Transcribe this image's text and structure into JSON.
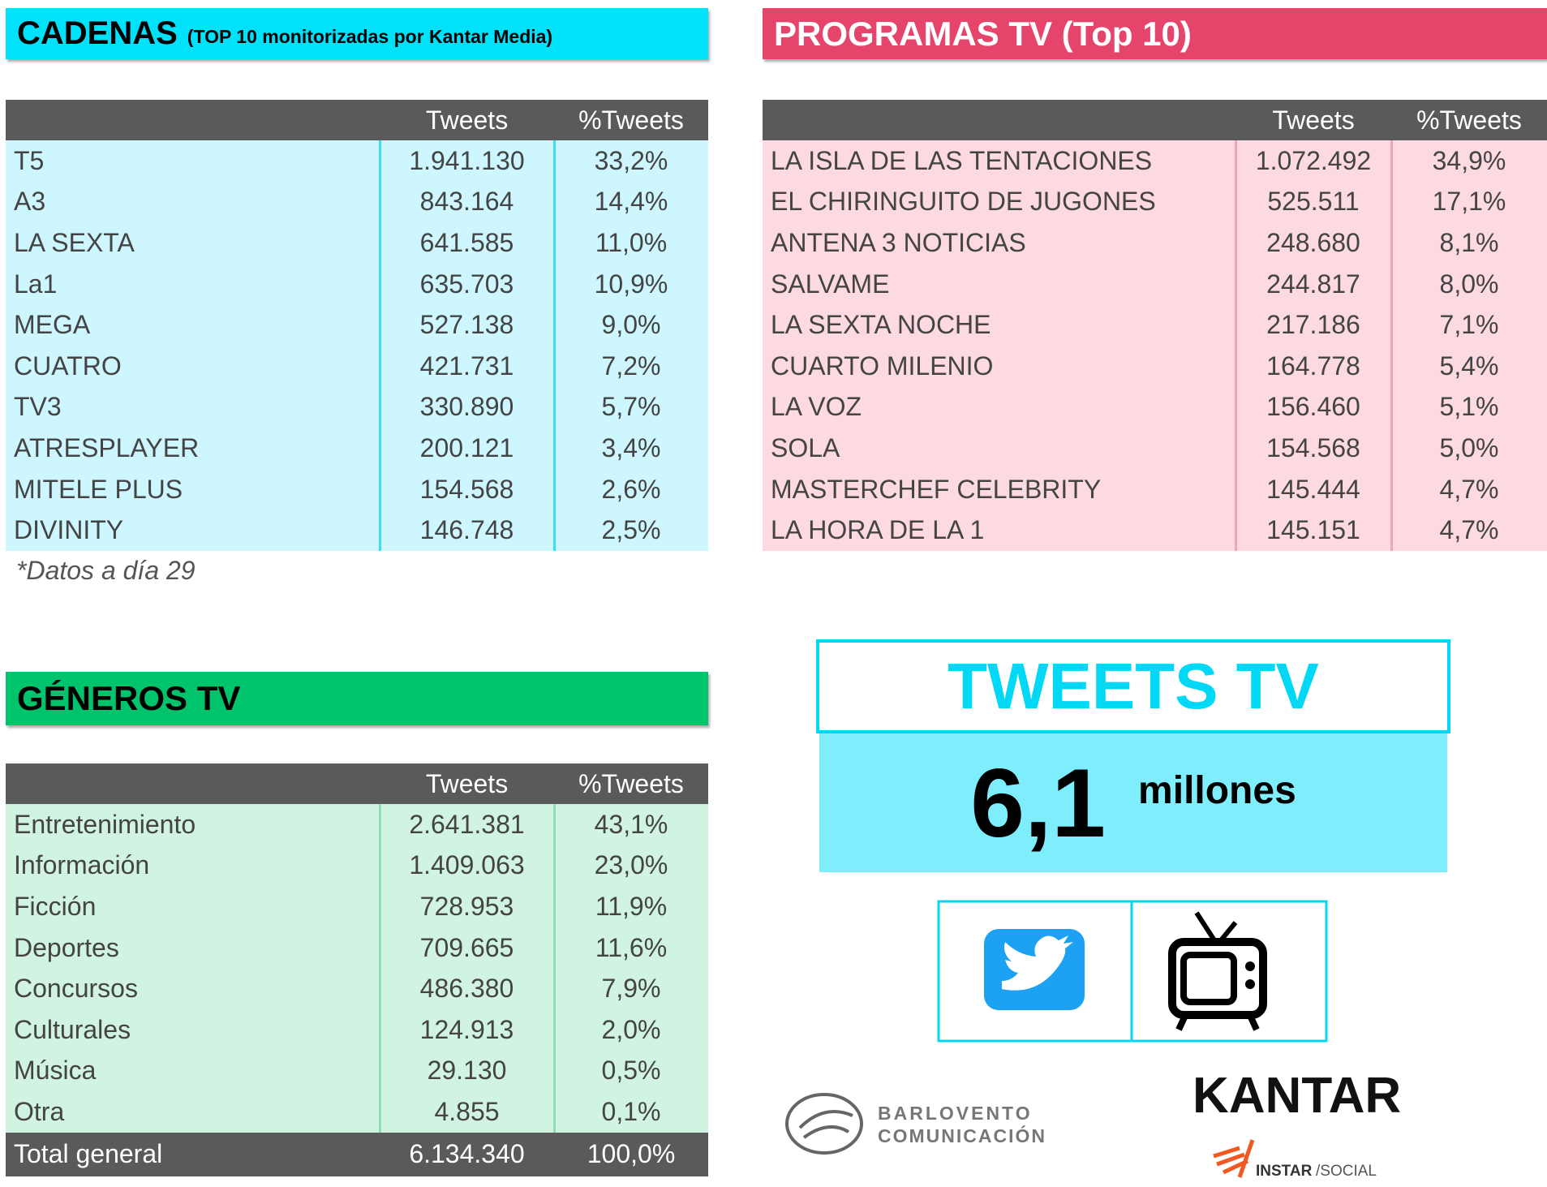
{
  "cadenas": {
    "title": "CADENAS",
    "subtitle": "(TOP 10 monitorizadas por Kantar Media)",
    "columns": [
      "Tweets",
      "%Tweets"
    ],
    "rows": [
      [
        "T5",
        "1.941.130",
        "33,2%"
      ],
      [
        "A3",
        "843.164",
        "14,4%"
      ],
      [
        "LA SEXTA",
        "641.585",
        "11,0%"
      ],
      [
        "La1",
        "635.703",
        "10,9%"
      ],
      [
        "MEGA",
        "527.138",
        "9,0%"
      ],
      [
        "CUATRO",
        "421.731",
        "7,2%"
      ],
      [
        "TV3",
        "330.890",
        "5,7%"
      ],
      [
        "ATRESPLAYER",
        "200.121",
        "3,4%"
      ],
      [
        "MITELE PLUS",
        "154.568",
        "2,6%"
      ],
      [
        "DIVINITY",
        "146.748",
        "2,5%"
      ]
    ],
    "note": "*Datos a día 29"
  },
  "programas": {
    "title": "PROGRAMAS TV (Top 10)",
    "columns": [
      "Tweets",
      "%Tweets"
    ],
    "rows": [
      [
        "LA ISLA DE LAS TENTACIONES",
        "1.072.492",
        "34,9%"
      ],
      [
        "EL CHIRINGUITO DE JUGONES",
        "525.511",
        "17,1%"
      ],
      [
        "ANTENA 3 NOTICIAS",
        "248.680",
        "8,1%"
      ],
      [
        "SALVAME",
        "244.817",
        "8,0%"
      ],
      [
        "LA SEXTA NOCHE",
        "217.186",
        "7,1%"
      ],
      [
        "CUARTO MILENIO",
        "164.778",
        "5,4%"
      ],
      [
        "LA VOZ",
        "156.460",
        "5,1%"
      ],
      [
        "SOLA",
        "154.568",
        "5,0%"
      ],
      [
        "MASTERCHEF CELEBRITY",
        "145.444",
        "4,7%"
      ],
      [
        "LA HORA DE LA 1",
        "145.151",
        "4,7%"
      ]
    ]
  },
  "generos": {
    "title": "GÉNEROS TV",
    "columns": [
      "Tweets",
      "%Tweets"
    ],
    "rows": [
      [
        "Entretenimiento",
        "2.641.381",
        "43,1%"
      ],
      [
        "Información",
        "1.409.063",
        "23,0%"
      ],
      [
        "Ficción",
        "728.953",
        "11,9%"
      ],
      [
        "Deportes",
        "709.665",
        "11,6%"
      ],
      [
        "Concursos",
        "486.380",
        "7,9%"
      ],
      [
        "Culturales",
        "124.913",
        "2,0%"
      ],
      [
        "Música",
        "29.130",
        "0,5%"
      ],
      [
        "Otra",
        "4.855",
        "0,1%"
      ]
    ],
    "total": [
      "Total general",
      "6.134.340",
      "100,0%"
    ]
  },
  "tweets_tv": {
    "title": "TWEETS TV",
    "value": "6,1",
    "unit": "millones"
  },
  "logos": {
    "barlovento": [
      "BARLOVENTO",
      "COMUNICACIÓN"
    ],
    "kantar": "KANTAR",
    "instar": "INSTAR",
    "social": "/SOCIAL"
  }
}
